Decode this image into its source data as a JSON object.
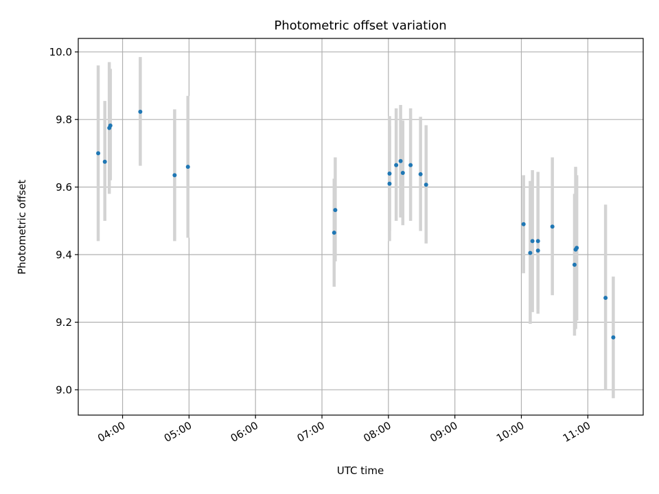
{
  "chart_data": {
    "type": "scatter",
    "title": "Photometric offset variation",
    "xlabel": "UTC time",
    "ylabel": "Photometric offset",
    "x_is_time": true,
    "xlim": [
      "03:20",
      "11:50"
    ],
    "ylim": [
      8.925,
      10.04
    ],
    "x_ticks": [
      "04:00",
      "05:00",
      "06:00",
      "07:00",
      "08:00",
      "09:00",
      "10:00",
      "11:00"
    ],
    "y_ticks": [
      "9.0",
      "9.2",
      "9.4",
      "9.6",
      "9.8",
      "10.0"
    ],
    "grid": true,
    "marker_color": "#1f77b4",
    "errorbar_color": "#d3d3d3",
    "points": [
      {
        "t": "03:38",
        "y": 9.7,
        "lo": 9.44,
        "hi": 9.96
      },
      {
        "t": "03:44",
        "y": 9.675,
        "lo": 9.5,
        "hi": 9.855
      },
      {
        "t": "03:48",
        "y": 9.775,
        "lo": 9.58,
        "hi": 9.97
      },
      {
        "t": "03:49",
        "y": 9.782,
        "lo": 9.62,
        "hi": 9.95
      },
      {
        "t": "04:16",
        "y": 9.823,
        "lo": 9.663,
        "hi": 9.985
      },
      {
        "t": "04:47",
        "y": 9.635,
        "lo": 9.44,
        "hi": 9.83
      },
      {
        "t": "04:59",
        "y": 9.66,
        "lo": 9.45,
        "hi": 9.87
      },
      {
        "t": "07:11",
        "y": 9.465,
        "lo": 9.305,
        "hi": 9.625
      },
      {
        "t": "07:12",
        "y": 9.532,
        "lo": 9.38,
        "hi": 9.688
      },
      {
        "t": "08:01",
        "y": 9.64,
        "lo": 9.47,
        "hi": 9.81
      },
      {
        "t": "08:01",
        "y": 9.61,
        "lo": 9.44,
        "hi": 9.78
      },
      {
        "t": "08:07",
        "y": 9.665,
        "lo": 9.5,
        "hi": 9.833
      },
      {
        "t": "08:11",
        "y": 9.677,
        "lo": 9.51,
        "hi": 9.843
      },
      {
        "t": "08:13",
        "y": 9.642,
        "lo": 9.487,
        "hi": 9.797
      },
      {
        "t": "08:20",
        "y": 9.665,
        "lo": 9.5,
        "hi": 9.833
      },
      {
        "t": "08:29",
        "y": 9.638,
        "lo": 9.47,
        "hi": 9.808
      },
      {
        "t": "08:34",
        "y": 9.607,
        "lo": 9.433,
        "hi": 9.783
      },
      {
        "t": "10:02",
        "y": 9.49,
        "lo": 9.345,
        "hi": 9.635
      },
      {
        "t": "10:08",
        "y": 9.405,
        "lo": 9.195,
        "hi": 9.618
      },
      {
        "t": "10:10",
        "y": 9.44,
        "lo": 9.23,
        "hi": 9.65
      },
      {
        "t": "10:15",
        "y": 9.44,
        "lo": 9.24,
        "hi": 9.645
      },
      {
        "t": "10:15",
        "y": 9.412,
        "lo": 9.225,
        "hi": 9.6
      },
      {
        "t": "10:28",
        "y": 9.483,
        "lo": 9.28,
        "hi": 9.688
      },
      {
        "t": "10:48",
        "y": 9.37,
        "lo": 9.16,
        "hi": 9.58
      },
      {
        "t": "10:49",
        "y": 9.415,
        "lo": 9.18,
        "hi": 9.66
      },
      {
        "t": "10:50",
        "y": 9.42,
        "lo": 9.205,
        "hi": 9.635
      },
      {
        "t": "11:16",
        "y": 9.272,
        "lo": 9.0,
        "hi": 9.548
      },
      {
        "t": "11:23",
        "y": 9.155,
        "lo": 8.975,
        "hi": 9.335
      }
    ]
  }
}
